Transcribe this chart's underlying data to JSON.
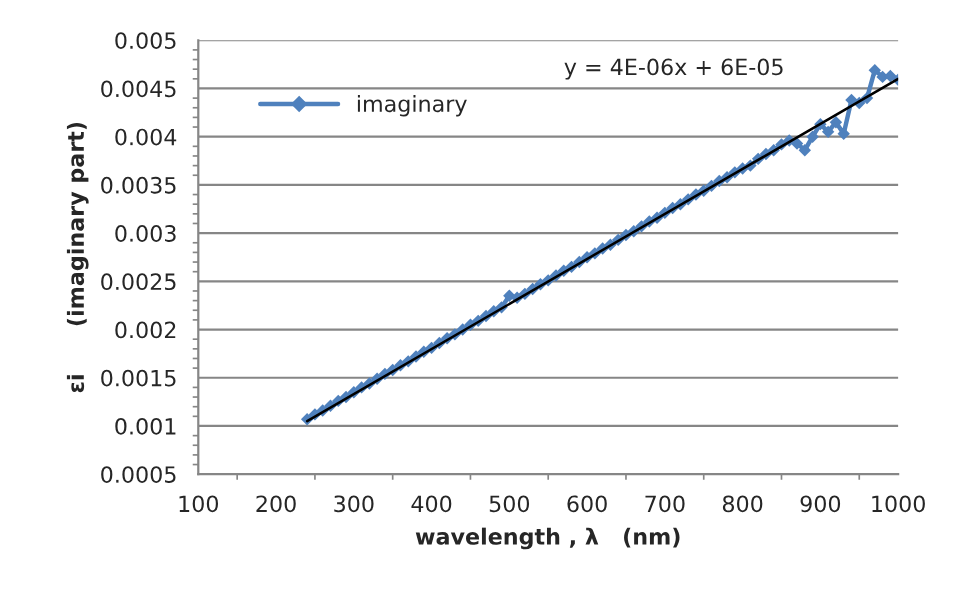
{
  "chart_data": {
    "type": "line",
    "xlabel": "wavelength , λ   (nm)",
    "ylabel": "εi      (imaginary part)",
    "xlim": [
      100,
      1000
    ],
    "xticks": [
      100,
      200,
      300,
      400,
      500,
      600,
      700,
      800,
      900,
      1000
    ],
    "ylim": [
      0.0005,
      0.005
    ],
    "yticks": [
      0.0005,
      0.001,
      0.0015,
      0.002,
      0.0025,
      0.003,
      0.0035,
      0.004,
      0.0045,
      0.005
    ],
    "grid": "y",
    "legend": "top left",
    "annotations": [
      "y = 4E-06x + 6E-05"
    ],
    "series": [
      {
        "name": "imaginary",
        "color": "#4f81bd",
        "marker": "diamond",
        "x": [
          240,
          250,
          260,
          270,
          280,
          290,
          300,
          310,
          320,
          330,
          340,
          350,
          360,
          370,
          380,
          390,
          400,
          410,
          420,
          430,
          440,
          450,
          460,
          470,
          480,
          490,
          500,
          510,
          520,
          530,
          540,
          550,
          560,
          570,
          580,
          590,
          600,
          610,
          620,
          630,
          640,
          650,
          660,
          670,
          680,
          690,
          700,
          710,
          720,
          730,
          740,
          750,
          760,
          770,
          780,
          790,
          800,
          810,
          820,
          830,
          840,
          850,
          860,
          870,
          880,
          890,
          900,
          910,
          920,
          930,
          940,
          950,
          960,
          970,
          980,
          990,
          1000
        ],
        "values": [
          0.00107,
          0.00112,
          0.00116,
          0.00121,
          0.00126,
          0.0013,
          0.00135,
          0.0014,
          0.00144,
          0.00149,
          0.00154,
          0.00158,
          0.00163,
          0.00167,
          0.00172,
          0.00177,
          0.00181,
          0.00186,
          0.00191,
          0.00195,
          0.002,
          0.00205,
          0.00209,
          0.00214,
          0.00219,
          0.00223,
          0.00235,
          0.00233,
          0.00237,
          0.00242,
          0.00247,
          0.00251,
          0.00256,
          0.00261,
          0.00265,
          0.0027,
          0.00275,
          0.00279,
          0.00284,
          0.00288,
          0.00293,
          0.00298,
          0.00302,
          0.00307,
          0.00312,
          0.00316,
          0.00321,
          0.00326,
          0.0033,
          0.00335,
          0.0034,
          0.00344,
          0.00349,
          0.00354,
          0.00358,
          0.00363,
          0.00367,
          0.0037,
          0.00377,
          0.00382,
          0.00386,
          0.00392,
          0.00396,
          0.00393,
          0.00386,
          0.004,
          0.00413,
          0.00405,
          0.00415,
          0.00403,
          0.00438,
          0.00435,
          0.0044,
          0.00469,
          0.00462,
          0.00463,
          0.00459
        ]
      },
      {
        "type": "line",
        "color": "#000000",
        "marker": "none",
        "x": [
          240,
          1000
        ],
        "values": [
          0.00105,
          0.0046
        ]
      }
    ]
  }
}
